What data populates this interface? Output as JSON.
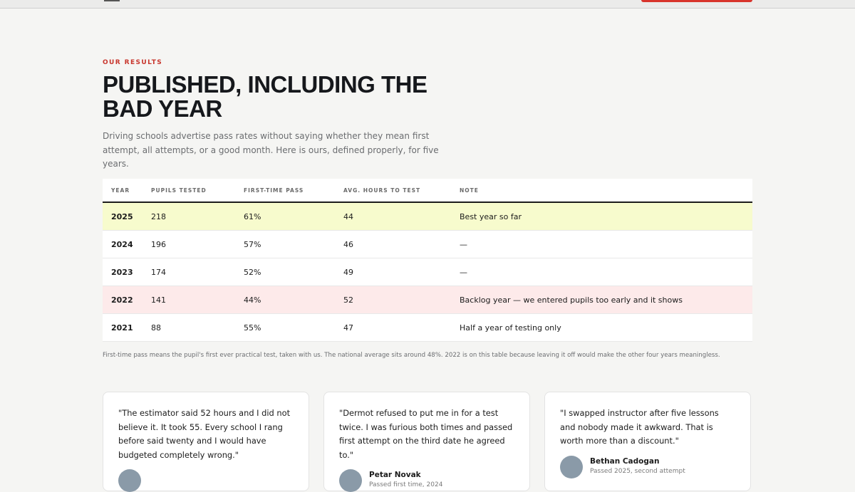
{
  "section": {
    "eyebrow": "OUR RESULTS",
    "title": "PUBLISHED, INCLUDING THE BAD YEAR",
    "intro": "Driving schools advertise pass rates without saying whether they mean first attempt, all attempts, or a good month. Here is ours, defined properly, for five years."
  },
  "table": {
    "headers": [
      "YEAR",
      "PUPILS TESTED",
      "FIRST-TIME PASS",
      "AVG. HOURS TO TEST",
      "NOTE"
    ],
    "rows": [
      [
        2025,
        218,
        "61%",
        44,
        "Best year so far"
      ],
      [
        2024,
        196,
        "57%",
        46,
        "—"
      ],
      [
        2023,
        174,
        "52%",
        49,
        "—"
      ],
      [
        2022,
        141,
        "44%",
        52,
        "Backlog year — we entered pupils too early and it shows"
      ],
      [
        2021,
        88,
        "55%",
        47,
        "Half a year of testing only"
      ]
    ],
    "footnote": "First-time pass means the pupil's first ever practical test, taken with us. The national average sits around 48%. 2022 is on this table because leaving it off would make the other four years meaningless."
  },
  "testimonials": [
    {
      "quote": "\"The estimator said 52 hours and I did not believe it. It took 55. Every school I rang before said twenty and I would have budgeted completely wrong.\""
    },
    {
      "quote": "\"Dermot refused to put me in for a test twice. I was furious both times and passed first attempt on the third date he agreed to.\"",
      "name": "Petar Novak",
      "detail": "Passed first time, 2024"
    },
    {
      "quote": "\"I swapped instructor after five lessons and nobody made it awkward. That is worth more than a discount.\"",
      "name": "Bethan Cadogan",
      "detail": "Passed 2025, second attempt"
    }
  ]
}
